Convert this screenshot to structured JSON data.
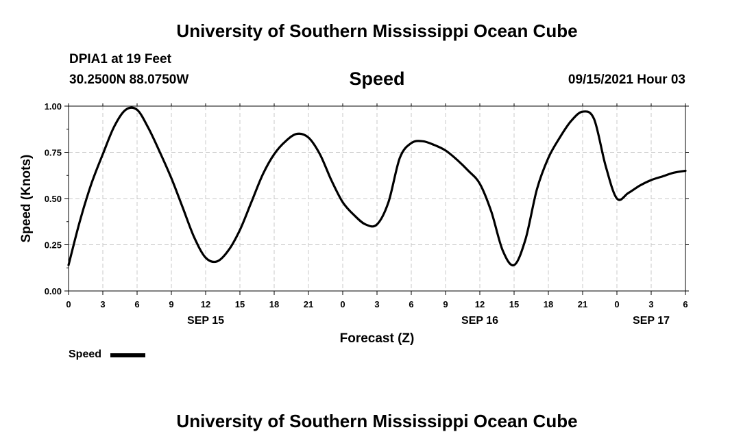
{
  "header": {
    "title_top": "University of Southern Mississippi Ocean Cube",
    "station": "DPIA1 at 19 Feet",
    "coords": "30.2500N  88.0750W",
    "variable": "Speed",
    "issued": "09/15/2021 Hour 03"
  },
  "footer": {
    "title_bottom": "University of Southern Mississippi Ocean Cube"
  },
  "legend": {
    "label": "Speed"
  },
  "chart_data": {
    "type": "line",
    "title": "Speed",
    "xlabel": "Forecast (Z)",
    "ylabel": "Speed (Knots)",
    "ylim": [
      0,
      1
    ],
    "yticks": [
      0,
      0.25,
      0.5,
      0.75,
      1.0
    ],
    "ytick_labels": [
      "0.00",
      "0.25",
      "0.50",
      "0.75",
      "1.00"
    ],
    "xlim": [
      "2021-09-15 00:00",
      "2021-09-17 06:00"
    ],
    "xticks": [
      "2021-09-15 00:00",
      "2021-09-15 03:00",
      "2021-09-15 06:00",
      "2021-09-15 09:00",
      "2021-09-15 12:00",
      "2021-09-15 15:00",
      "2021-09-15 18:00",
      "2021-09-15 21:00",
      "2021-09-16 00:00",
      "2021-09-16 03:00",
      "2021-09-16 06:00",
      "2021-09-16 09:00",
      "2021-09-16 12:00",
      "2021-09-16 15:00",
      "2021-09-16 18:00",
      "2021-09-16 21:00",
      "2021-09-17 00:00",
      "2021-09-17 03:00",
      "2021-09-17 06:00"
    ],
    "xtick_labels": [
      "0",
      "3",
      "6",
      "9",
      "12",
      "15",
      "18",
      "21",
      "0",
      "3",
      "6",
      "9",
      "12",
      "15",
      "18",
      "21",
      "0",
      "3",
      "6"
    ],
    "date_labels": [
      {
        "at": "2021-09-15 12:00",
        "text": "SEP 15"
      },
      {
        "at": "2021-09-16 12:00",
        "text": "SEP 16"
      },
      {
        "at": "2021-09-17 03:00",
        "text": "SEP 17"
      }
    ],
    "grid": true,
    "legend_position": "bottom-left",
    "series": [
      {
        "name": "Speed",
        "color": "#000000",
        "points": [
          [
            "2021-09-15 00:00",
            0.14
          ],
          [
            "2021-09-15 01:00",
            0.38
          ],
          [
            "2021-09-15 02:00",
            0.58
          ],
          [
            "2021-09-15 03:00",
            0.74
          ],
          [
            "2021-09-15 04:00",
            0.89
          ],
          [
            "2021-09-15 05:00",
            0.98
          ],
          [
            "2021-09-15 06:00",
            0.98
          ],
          [
            "2021-09-15 07:00",
            0.88
          ],
          [
            "2021-09-15 08:00",
            0.75
          ],
          [
            "2021-09-15 09:00",
            0.61
          ],
          [
            "2021-09-15 10:00",
            0.45
          ],
          [
            "2021-09-15 11:00",
            0.29
          ],
          [
            "2021-09-15 12:00",
            0.18
          ],
          [
            "2021-09-15 13:00",
            0.16
          ],
          [
            "2021-09-15 14:00",
            0.22
          ],
          [
            "2021-09-15 15:00",
            0.33
          ],
          [
            "2021-09-15 16:00",
            0.48
          ],
          [
            "2021-09-15 17:00",
            0.63
          ],
          [
            "2021-09-15 18:00",
            0.74
          ],
          [
            "2021-09-15 19:00",
            0.81
          ],
          [
            "2021-09-15 20:00",
            0.85
          ],
          [
            "2021-09-15 21:00",
            0.83
          ],
          [
            "2021-09-15 22:00",
            0.74
          ],
          [
            "2021-09-15 23:00",
            0.6
          ],
          [
            "2021-09-16 00:00",
            0.48
          ],
          [
            "2021-09-16 01:00",
            0.41
          ],
          [
            "2021-09-16 02:00",
            0.36
          ],
          [
            "2021-09-16 03:00",
            0.36
          ],
          [
            "2021-09-16 04:00",
            0.48
          ],
          [
            "2021-09-16 05:00",
            0.72
          ],
          [
            "2021-09-16 06:00",
            0.8
          ],
          [
            "2021-09-16 07:00",
            0.81
          ],
          [
            "2021-09-16 08:00",
            0.79
          ],
          [
            "2021-09-16 09:00",
            0.76
          ],
          [
            "2021-09-16 10:00",
            0.71
          ],
          [
            "2021-09-16 11:00",
            0.65
          ],
          [
            "2021-09-16 12:00",
            0.58
          ],
          [
            "2021-09-16 13:00",
            0.43
          ],
          [
            "2021-09-16 14:00",
            0.22
          ],
          [
            "2021-09-16 15:00",
            0.14
          ],
          [
            "2021-09-16 16:00",
            0.28
          ],
          [
            "2021-09-16 17:00",
            0.55
          ],
          [
            "2021-09-16 18:00",
            0.72
          ],
          [
            "2021-09-16 19:00",
            0.83
          ],
          [
            "2021-09-16 20:00",
            0.92
          ],
          [
            "2021-09-16 21:00",
            0.97
          ],
          [
            "2021-09-16 22:00",
            0.93
          ],
          [
            "2021-09-16 23:00",
            0.68
          ],
          [
            "2021-09-17 00:00",
            0.5
          ],
          [
            "2021-09-17 01:00",
            0.53
          ],
          [
            "2021-09-17 02:00",
            0.57
          ],
          [
            "2021-09-17 03:00",
            0.6
          ],
          [
            "2021-09-17 04:00",
            0.62
          ],
          [
            "2021-09-17 05:00",
            0.64
          ],
          [
            "2021-09-17 06:00",
            0.65
          ]
        ]
      }
    ]
  }
}
